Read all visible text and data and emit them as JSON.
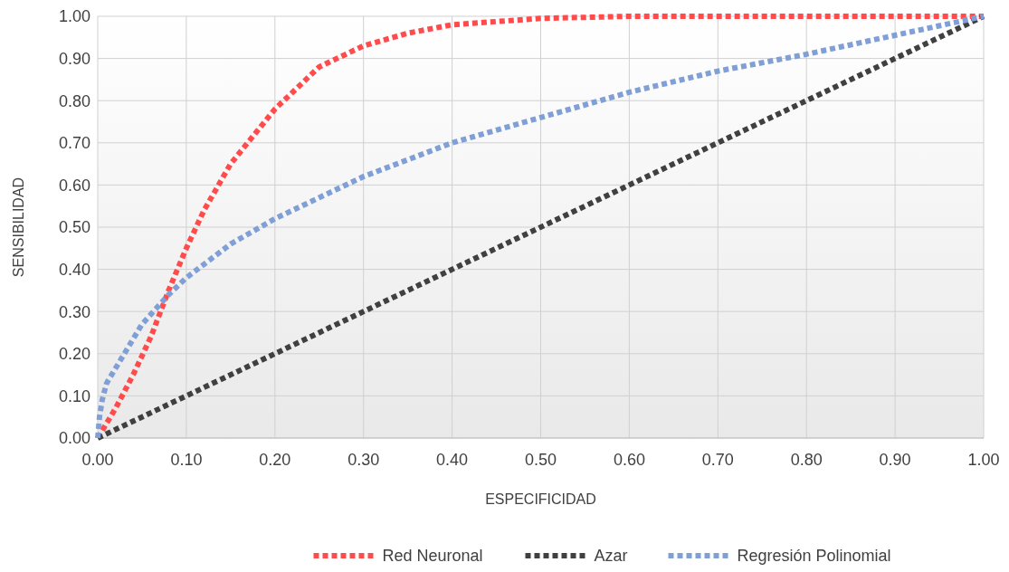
{
  "chart_data": {
    "type": "line",
    "xlabel": "ESPECIFICIDAD",
    "ylabel": "SENSIBILIDAD",
    "xlim": [
      0,
      1
    ],
    "ylim": [
      0,
      1
    ],
    "xticks": [
      {
        "value": 0,
        "label": "0.00"
      },
      {
        "value": 0.1,
        "label": "0.10"
      },
      {
        "value": 0.2,
        "label": "0.20"
      },
      {
        "value": 0.3,
        "label": "0.30"
      },
      {
        "value": 0.4,
        "label": "0.40"
      },
      {
        "value": 0.5,
        "label": "0.50"
      },
      {
        "value": 0.6,
        "label": "0.60"
      },
      {
        "value": 0.7,
        "label": "0.70"
      },
      {
        "value": 0.8,
        "label": "0.80"
      },
      {
        "value": 0.9,
        "label": "0.90"
      },
      {
        "value": 1,
        "label": "1.00"
      }
    ],
    "yticks": [
      {
        "value": 0,
        "label": "0.00"
      },
      {
        "value": 0.1,
        "label": "0.10"
      },
      {
        "value": 0.2,
        "label": "0.20"
      },
      {
        "value": 0.3,
        "label": "0.30"
      },
      {
        "value": 0.4,
        "label": "0.40"
      },
      {
        "value": 0.5,
        "label": "0.50"
      },
      {
        "value": 0.6,
        "label": "0.60"
      },
      {
        "value": 0.7,
        "label": "0.70"
      },
      {
        "value": 0.8,
        "label": "0.80"
      },
      {
        "value": 0.9,
        "label": "0.90"
      },
      {
        "value": 1,
        "label": "1.00"
      }
    ],
    "grid": true,
    "legend": "bottom",
    "marker": "none",
    "line_style": "dotted",
    "series": [
      {
        "name": "Red Neuronal",
        "color": "#ff4b4b",
        "x": [
          0,
          0.02,
          0.04,
          0.06,
          0.08,
          0.1,
          0.12,
          0.15,
          0.2,
          0.25,
          0.3,
          0.35,
          0.4,
          0.5,
          0.6,
          0.8,
          1
        ],
        "values": [
          0,
          0.07,
          0.15,
          0.24,
          0.35,
          0.45,
          0.54,
          0.65,
          0.78,
          0.88,
          0.93,
          0.96,
          0.98,
          0.995,
          1,
          1,
          1
        ]
      },
      {
        "name": "Azar",
        "color": "#404040",
        "x": [
          0,
          1
        ],
        "values": [
          0,
          1
        ]
      },
      {
        "name": "Regresión Polinomial",
        "color": "#7f9fd6",
        "x": [
          0,
          0.002,
          0.005,
          0.01,
          0.03,
          0.05,
          0.08,
          0.1,
          0.15,
          0.2,
          0.25,
          0.3,
          0.4,
          0.5,
          0.6,
          0.7,
          0.8,
          0.9,
          1
        ],
        "values": [
          0,
          0.05,
          0.09,
          0.13,
          0.2,
          0.27,
          0.34,
          0.38,
          0.46,
          0.52,
          0.57,
          0.62,
          0.7,
          0.76,
          0.82,
          0.87,
          0.91,
          0.955,
          1
        ]
      }
    ]
  }
}
